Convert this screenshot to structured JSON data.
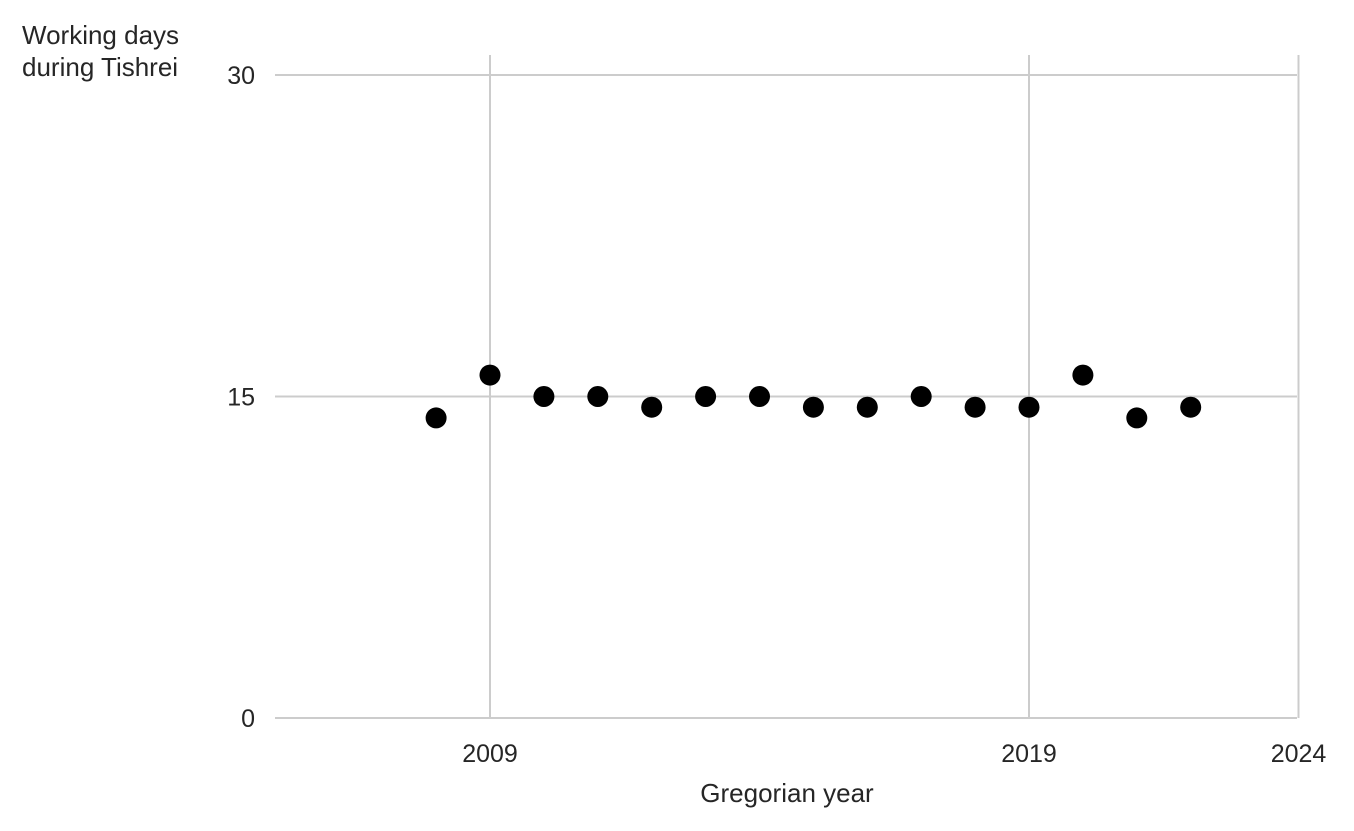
{
  "chart_data": {
    "type": "scatter",
    "title": "",
    "ylabel_lines": [
      "Working days",
      "during Tishrei"
    ],
    "xlabel": "Gregorian year",
    "xlim": [
      2005,
      2024
    ],
    "ylim": [
      0,
      30
    ],
    "xticks": [
      2009,
      2019,
      2024
    ],
    "yticks": [
      0,
      15,
      30
    ],
    "grid": true,
    "x": [
      2008,
      2009,
      2010,
      2011,
      2012,
      2013,
      2014,
      2015,
      2016,
      2017,
      2018,
      2019,
      2020,
      2021,
      2022
    ],
    "y": [
      14,
      16,
      15,
      15,
      14.5,
      15,
      15,
      14.5,
      14.5,
      15,
      14.5,
      14.5,
      16,
      14,
      14.5
    ],
    "marker_color": "#000000",
    "grid_color": "#cccccc"
  }
}
